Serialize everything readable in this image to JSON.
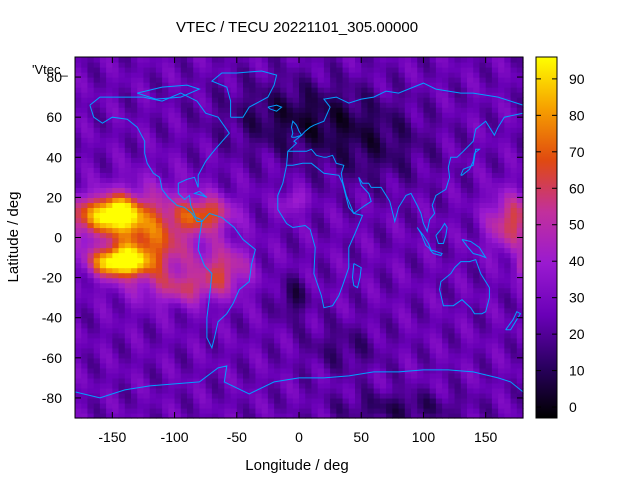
{
  "chart_data": {
    "type": "heatmap",
    "title": "VTEC / TECU 20221101_305.00000",
    "xlabel": "Longitude / deg",
    "ylabel": "Latitude / deg",
    "legend_label": "'Vtec_",
    "xlim": [
      -180,
      180
    ],
    "ylim": [
      -90,
      90
    ],
    "xticks": [
      -150,
      -100,
      -50,
      0,
      50,
      100,
      150
    ],
    "yticks": [
      -80,
      -60,
      -40,
      -20,
      0,
      20,
      40,
      60,
      80
    ],
    "colorbar": {
      "min": -3,
      "max": 96,
      "ticks": [
        0,
        10,
        20,
        30,
        40,
        50,
        60,
        70,
        80,
        90
      ],
      "palette": [
        "#000000",
        "#2a0060",
        "#6a00b8",
        "#9a1ad0",
        "#c2309c",
        "#e04a10",
        "#f6a000",
        "#ffff00"
      ]
    },
    "grid_resolution": {
      "lon_step": 5,
      "lat_step": 2.5
    },
    "colors": {
      "coastline": "#00a0ff"
    }
  }
}
